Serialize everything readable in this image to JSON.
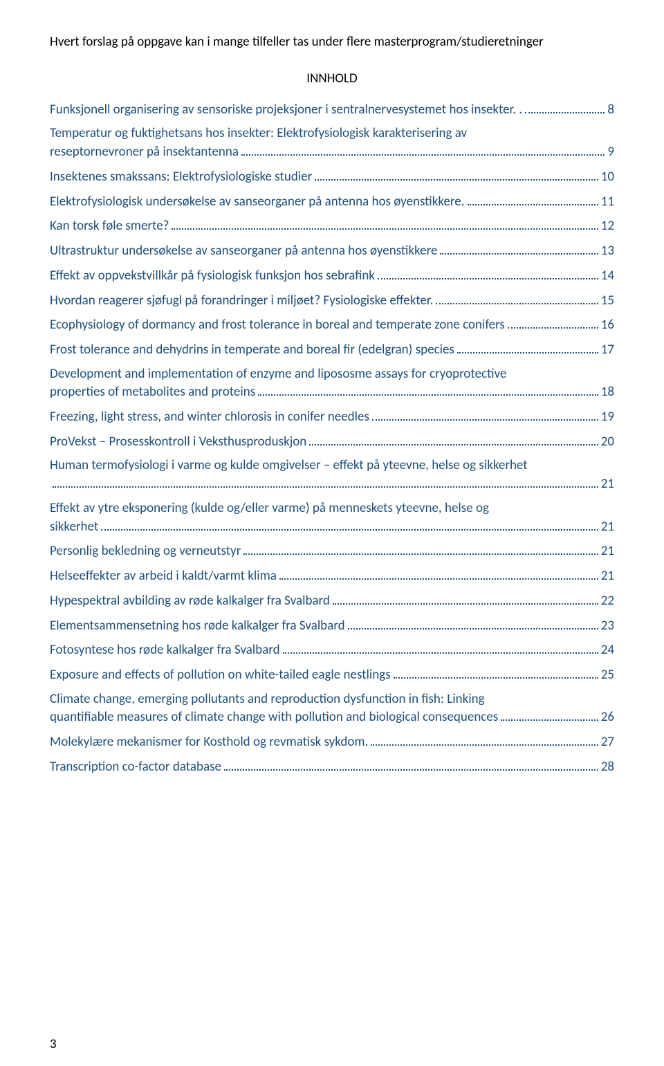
{
  "intro": "Hvert forslag på oppgave kan i mange tilfeller tas under flere masterprogram/studieretninger",
  "heading": "INNHOLD",
  "text_color": "#1f4e79",
  "toc": [
    {
      "lines": [
        "Funksjonell organisering av sensoriske projeksjoner i sentralnervesystemet hos insekter. ."
      ],
      "page": "8"
    },
    {
      "lines": [
        "Temperatur og fuktighetsans hos insekter: Elektrofysiologisk karakterisering av",
        "reseptornevroner  på insektantenna"
      ],
      "page": "9"
    },
    {
      "lines": [
        "Insektenes smakssans: Elektrofysiologiske studier"
      ],
      "page": "10"
    },
    {
      "lines": [
        "Elektrofysiologisk undersøkelse av sanseorganer på antenna hos øyenstikkere. "
      ],
      "page": "11"
    },
    {
      "lines": [
        "Kan torsk føle smerte?"
      ],
      "page": "12"
    },
    {
      "lines": [
        "Ultrastruktur undersøkelse av sanseorganer på antenna hos øyenstikkere"
      ],
      "page": "13"
    },
    {
      "lines": [
        "Effekt av oppvekstvillkår på fysiologisk funksjon hos sebrafink"
      ],
      "page": "14"
    },
    {
      "lines": [
        "Hvordan reagerer sjøfugl på forandringer i miljøet? Fysiologiske effekter. "
      ],
      "page": "15"
    },
    {
      "lines": [
        "Ecophysiology of dormancy and frost tolerance in boreal and temperate zone conifers"
      ],
      "page": "16"
    },
    {
      "lines": [
        "Frost tolerance and dehydrins in temperate and boreal fir (edelgran) species"
      ],
      "page": "17"
    },
    {
      "lines": [
        "Development and implementation of enzyme and lipososme assays for cryoprotective",
        "properties of metabolites and proteins"
      ],
      "page": "18"
    },
    {
      "lines": [
        "Freezing, light stress, and winter chlorosis in conifer needles"
      ],
      "page": "19"
    },
    {
      "lines": [
        "ProVekst – Prosesskontroll i Veksthusproduskjon"
      ],
      "page": "20"
    },
    {
      "lines": [
        "Human termofysiologi i varme og kulde omgivelser – effekt på yteevne, helse og sikkerhet",
        ""
      ],
      "page": "21"
    },
    {
      "lines": [
        "Effekt av ytre eksponering (kulde og/eller varme) på menneskets yteevne, helse og",
        "sikkerhet"
      ],
      "page": "21"
    },
    {
      "lines": [
        "Personlig bekledning og verneutstyr"
      ],
      "page": "21"
    },
    {
      "lines": [
        "Helseeffekter av arbeid i kaldt/varmt klima"
      ],
      "page": "21"
    },
    {
      "lines": [
        "Hypespektral avbilding av røde kalkalger fra Svalbard"
      ],
      "page": "22"
    },
    {
      "lines": [
        "Elementsammensetning hos røde kalkalger fra Svalbard"
      ],
      "page": "23"
    },
    {
      "lines": [
        "Fotosyntese hos røde kalkalger fra Svalbard"
      ],
      "page": "24"
    },
    {
      "lines": [
        "Exposure and effects of pollution on white-tailed eagle nestlings"
      ],
      "page": "25"
    },
    {
      "lines": [
        "Climate change, emerging pollutants and reproduction dysfunction in fish: Linking",
        "quantifiable measures of climate change with pollution and biological consequences"
      ],
      "page": "26"
    },
    {
      "lines": [
        "Molekylære mekanismer for Kosthold og revmatisk sykdom."
      ],
      "page": "27"
    },
    {
      "lines": [
        "Transcription co-factor database"
      ],
      "page": "28"
    }
  ],
  "page_number": "3"
}
